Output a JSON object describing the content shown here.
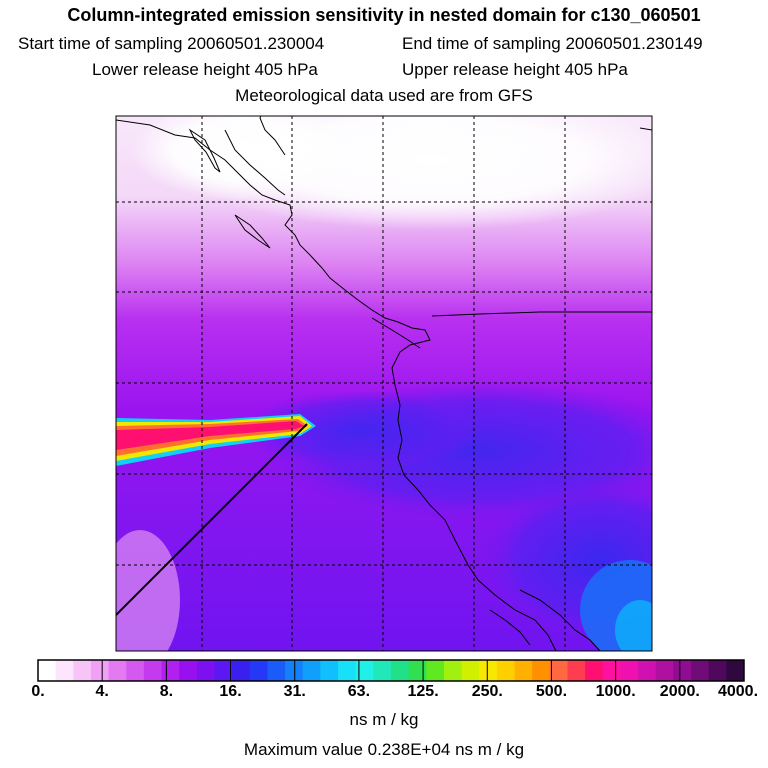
{
  "title": "Column-integrated emission sensitivity in nested domain for c130_060501",
  "sampling": {
    "start": "Start time of sampling 20060501.230004",
    "end": "End time of sampling 20060501.230149"
  },
  "release": {
    "lower": "Lower release height  405 hPa",
    "upper": "Upper release height  405 hPa"
  },
  "met_source": "Meteorological data used are from GFS",
  "colorbar": {
    "labels": [
      "0.",
      "4.",
      "8.",
      "16.",
      "31.",
      "63.",
      "125.",
      "250.",
      "500.",
      "1000.",
      "2000.",
      "4000."
    ],
    "colors": [
      "#ffffff",
      "#fde6fd",
      "#f7c4f7",
      "#f0a0f5",
      "#e47af2",
      "#d558f0",
      "#c43aef",
      "#b020ef",
      "#9810ef",
      "#7c10f0",
      "#5c18f2",
      "#3a20f0",
      "#2438f5",
      "#1a5cf8",
      "#1480fa",
      "#10a0fb",
      "#10c0fc",
      "#18e0f8",
      "#20f0e8",
      "#20e8b8",
      "#20e088",
      "#30e050",
      "#60e820",
      "#a0f010",
      "#d0f000",
      "#f8e800",
      "#ffd000",
      "#ffb000",
      "#ff9000",
      "#ff6840",
      "#ff3c50",
      "#ff1070",
      "#ff10a0",
      "#f010b0",
      "#d010b0",
      "#b010a0",
      "#900c90",
      "#700c78",
      "#50085c",
      "#300840"
    ],
    "units": "ns m / kg"
  },
  "max_value": "Maximum value  0.238E+04 ns m / kg"
}
